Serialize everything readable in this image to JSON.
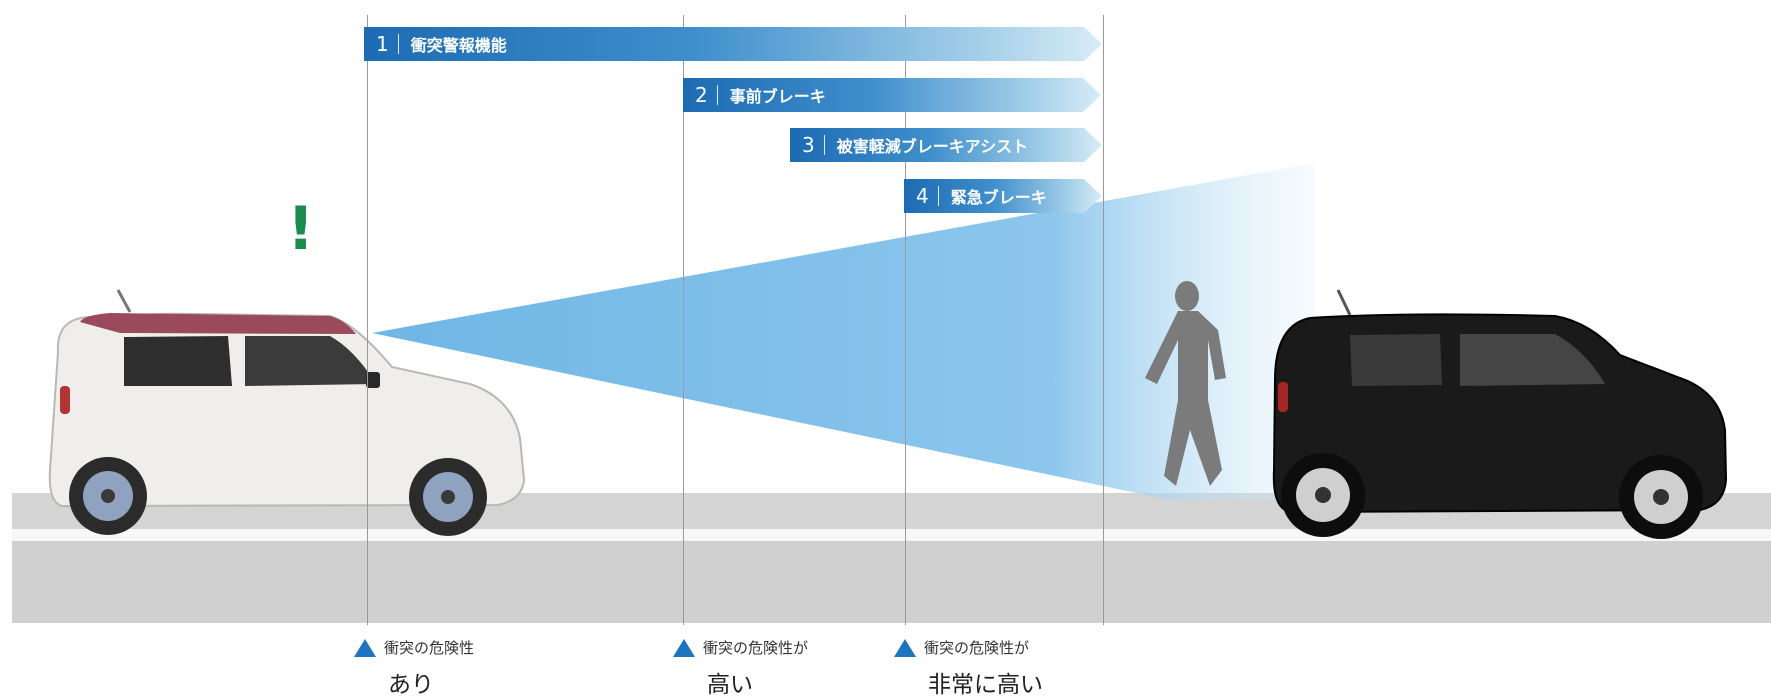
{
  "features": [
    {
      "num": "1",
      "label": "衝突警報機能"
    },
    {
      "num": "2",
      "label": "事前ブレーキ"
    },
    {
      "num": "3",
      "label": "被害軽減ブレーキアシスト"
    },
    {
      "num": "4",
      "label": "緊急ブレーキ"
    }
  ],
  "risk_labels": [
    {
      "line1": "衝突の危険性",
      "line2": "あり"
    },
    {
      "line1": "衝突の危険性が",
      "line2": "高い"
    },
    {
      "line1": "衝突の危険性が",
      "line2": "非常に高い"
    }
  ],
  "warning_symbol": "!",
  "colors": {
    "arrow_blue": "#1d6bb3",
    "beam_blue": "#6fb6e6",
    "warning_green": "#1a8a4e",
    "risk_triangle": "#1f74c0",
    "own_car_body": "#efeeea",
    "own_car_roof": "#9b4a5b",
    "front_car_body": "#1a1a1a",
    "pedestrian": "#7b7b7b"
  },
  "icons": {
    "own_vehicle": "white-car-with-pink-roof",
    "front_vehicle": "black-car",
    "pedestrian": "walking-person-silhouette",
    "risk_marker": "blue-triangle-icon"
  }
}
